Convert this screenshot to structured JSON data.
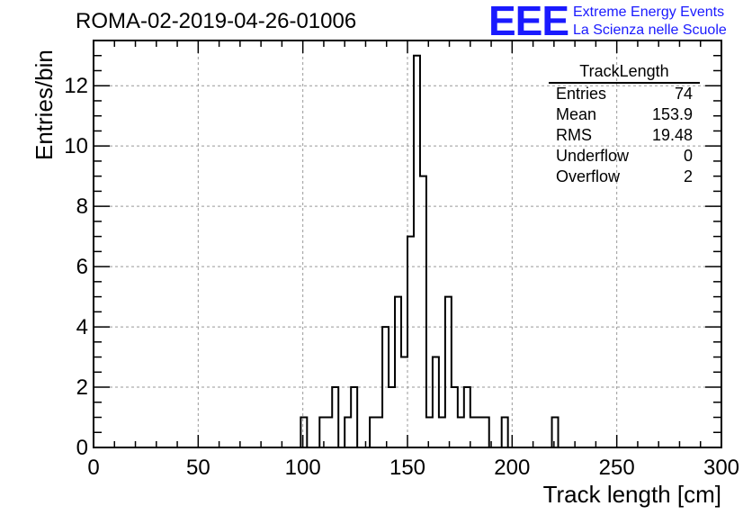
{
  "run_title": "ROMA-02-2019-04-26-01006",
  "logo": {
    "mark": "EEE",
    "line1": "Extreme Energy Events",
    "line2": "La Scienza nelle Scuole",
    "color": "#1a1aff"
  },
  "stats": {
    "name": "TrackLength",
    "rows": [
      {
        "label": "Entries",
        "value": "74"
      },
      {
        "label": "Mean",
        "value": "153.9"
      },
      {
        "label": "RMS",
        "value": "19.48"
      },
      {
        "label": "Underflow",
        "value": "0"
      },
      {
        "label": "Overflow",
        "value": "2"
      }
    ]
  },
  "chart_data": {
    "type": "bar",
    "histogram": true,
    "title": "ROMA-02-2019-04-26-01006",
    "xlabel": "Track length [cm]",
    "ylabel": "Entries/bin",
    "xlim": [
      0,
      300
    ],
    "ylim": [
      0,
      13.5
    ],
    "grid": true,
    "bin_width": 3,
    "x_ticks": [
      0,
      50,
      100,
      150,
      200,
      250,
      300
    ],
    "y_ticks": [
      0,
      2,
      4,
      6,
      8,
      10,
      12
    ],
    "bins": [
      {
        "x": 99,
        "y": 1
      },
      {
        "x": 102,
        "y": 0
      },
      {
        "x": 105,
        "y": 0
      },
      {
        "x": 108,
        "y": 1
      },
      {
        "x": 111,
        "y": 1
      },
      {
        "x": 114,
        "y": 2
      },
      {
        "x": 117,
        "y": 0
      },
      {
        "x": 120,
        "y": 1
      },
      {
        "x": 123,
        "y": 2
      },
      {
        "x": 126,
        "y": 0
      },
      {
        "x": 129,
        "y": 0
      },
      {
        "x": 132,
        "y": 1
      },
      {
        "x": 135,
        "y": 1
      },
      {
        "x": 138,
        "y": 4
      },
      {
        "x": 141,
        "y": 2
      },
      {
        "x": 144,
        "y": 5
      },
      {
        "x": 147,
        "y": 3
      },
      {
        "x": 150,
        "y": 7
      },
      {
        "x": 153,
        "y": 13
      },
      {
        "x": 156,
        "y": 9
      },
      {
        "x": 159,
        "y": 1
      },
      {
        "x": 162,
        "y": 3
      },
      {
        "x": 165,
        "y": 1
      },
      {
        "x": 168,
        "y": 5
      },
      {
        "x": 171,
        "y": 2
      },
      {
        "x": 174,
        "y": 1
      },
      {
        "x": 177,
        "y": 2
      },
      {
        "x": 180,
        "y": 1
      },
      {
        "x": 183,
        "y": 1
      },
      {
        "x": 186,
        "y": 1
      },
      {
        "x": 189,
        "y": 0
      },
      {
        "x": 192,
        "y": 0
      },
      {
        "x": 195,
        "y": 1
      },
      {
        "x": 198,
        "y": 0
      },
      {
        "x": 219,
        "y": 1
      }
    ]
  }
}
